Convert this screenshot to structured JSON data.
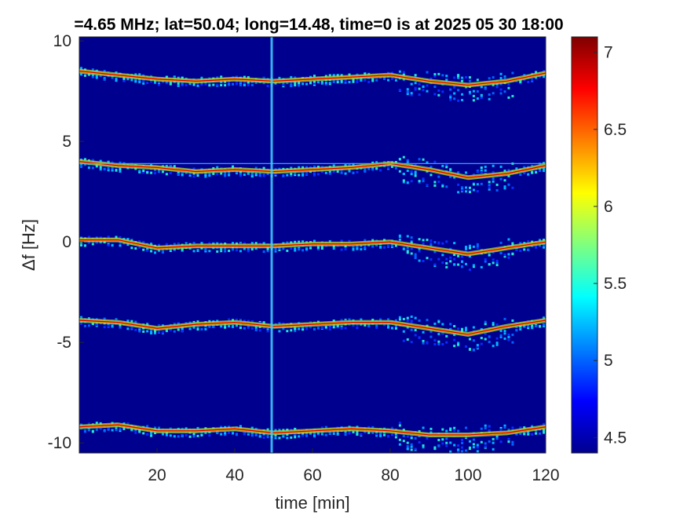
{
  "chart_data": {
    "type": "heatmap",
    "title": "=4.65 MHz;  lat=50.04; long=14.48, time=0 is at 2025 05 30 18:00",
    "xlabel": "time [min]",
    "ylabel": "Δf [Hz]",
    "xlim": [
      0,
      120
    ],
    "ylim": [
      -10.5,
      10.2
    ],
    "x_ticks": [
      20,
      40,
      60,
      80,
      100,
      120
    ],
    "y_ticks": [
      10,
      5,
      0,
      -5,
      -10
    ],
    "colorbar": {
      "clim": [
        4.4,
        7.1
      ],
      "ticks": [
        4.5,
        5,
        5.5,
        6,
        6.5,
        7
      ],
      "colormap": "jet"
    },
    "background_color": "#00008f",
    "series": [
      {
        "x": [
          0,
          10,
          20,
          30,
          40,
          50,
          60,
          70,
          80,
          90,
          100,
          110,
          120
        ],
        "y": [
          8.5,
          8.3,
          8.1,
          8.0,
          8.1,
          8.0,
          8.1,
          8.2,
          8.3,
          8.0,
          7.8,
          8.0,
          8.4
        ]
      },
      {
        "x": [
          0,
          10,
          20,
          30,
          40,
          50,
          60,
          70,
          80,
          90,
          100,
          110,
          120
        ],
        "y": [
          4.0,
          3.8,
          3.7,
          3.5,
          3.6,
          3.5,
          3.6,
          3.7,
          3.9,
          3.6,
          3.2,
          3.4,
          3.8
        ]
      },
      {
        "x": [
          0,
          10,
          20,
          30,
          40,
          50,
          60,
          70,
          80,
          90,
          100,
          110,
          120
        ],
        "y": [
          0.1,
          0.1,
          -0.3,
          -0.2,
          -0.2,
          -0.2,
          -0.1,
          -0.1,
          0.0,
          -0.3,
          -0.6,
          -0.3,
          0.0
        ]
      },
      {
        "x": [
          0,
          10,
          20,
          30,
          40,
          50,
          60,
          70,
          80,
          90,
          100,
          110,
          120
        ],
        "y": [
          -3.9,
          -4.0,
          -4.3,
          -4.1,
          -4.0,
          -4.2,
          -4.1,
          -4.0,
          -4.0,
          -4.3,
          -4.6,
          -4.2,
          -3.9
        ]
      },
      {
        "x": [
          0,
          10,
          20,
          30,
          40,
          50,
          60,
          70,
          80,
          90,
          100,
          110,
          120
        ],
        "y": [
          -9.2,
          -9.1,
          -9.4,
          -9.4,
          -9.3,
          -9.5,
          -9.4,
          -9.3,
          -9.4,
          -9.6,
          -9.6,
          -9.5,
          -9.2
        ]
      }
    ],
    "reference_line_y": 3.9,
    "vertical_line_x": 49.5
  }
}
